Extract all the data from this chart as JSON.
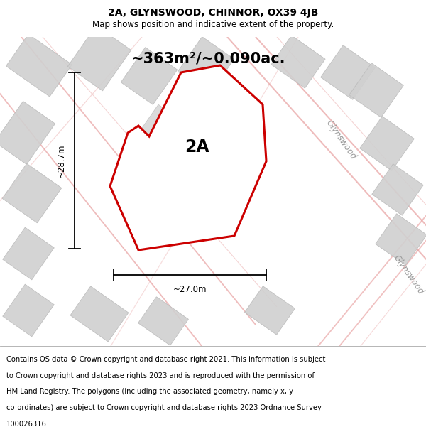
{
  "title": "2A, GLYNSWOOD, CHINNOR, OX39 4JB",
  "subtitle": "Map shows position and indicative extent of the property.",
  "area_label": "~363m²/~0.090ac.",
  "plot_label": "2A",
  "width_label": "~27.0m",
  "height_label": "~28.7m",
  "footer_lines": [
    "Contains OS data © Crown copyright and database right 2021. This information is subject",
    "to Crown copyright and database rights 2023 and is reproduced with the permission of",
    "HM Land Registry. The polygons (including the associated geometry, namely x, y",
    "co-ordinates) are subject to Crown copyright and database rights 2023 Ordnance Survey",
    "100026316."
  ],
  "bg_color": "#f2f2f2",
  "footer_bg": "#ffffff",
  "red_poly_color": "#cc0000",
  "light_red_line_color": "#e8a0a0",
  "gray_building_face": "#d0d0d0",
  "gray_building_edge": "#bbbbbb",
  "title_fontsize": 10,
  "subtitle_fontsize": 8.5,
  "area_fontsize": 15,
  "plot_label_fontsize": 17,
  "dim_fontsize": 8.5,
  "street_fontsize": 8.5,
  "footer_fontsize": 7.2
}
